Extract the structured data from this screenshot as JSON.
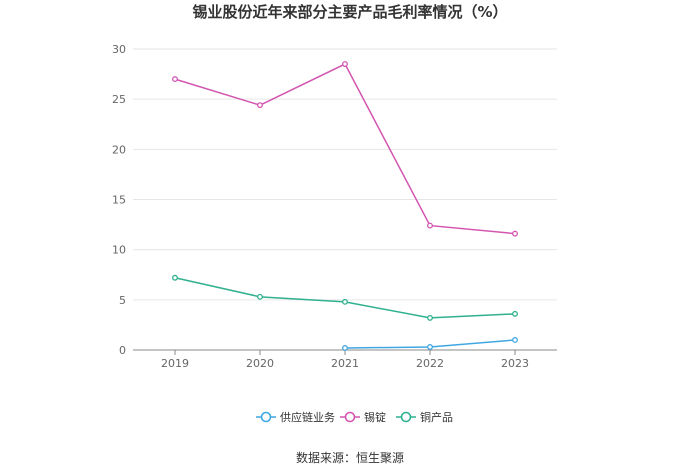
{
  "chart_data": {
    "type": "line",
    "title": "锡业股份近年来部分主要产品毛利率情况（%）",
    "x": [
      "2019",
      "2020",
      "2021",
      "2022",
      "2023"
    ],
    "ylim": [
      0,
      30
    ],
    "yticks": [
      0,
      5,
      10,
      15,
      20,
      25,
      30
    ],
    "grid": true,
    "legend_position": "bottom",
    "series": [
      {
        "name": "供应链业务",
        "color": "#3fa7e1",
        "values": [
          null,
          null,
          0.2,
          0.3,
          1.0
        ]
      },
      {
        "name": "锡锭",
        "color": "#d355b0",
        "values": [
          27.0,
          24.4,
          28.5,
          12.4,
          11.6
        ]
      },
      {
        "name": "铜产品",
        "color": "#2fb08f",
        "values": [
          7.2,
          5.3,
          4.8,
          3.2,
          3.6
        ]
      }
    ],
    "source": "数据来源：恒生聚源"
  }
}
